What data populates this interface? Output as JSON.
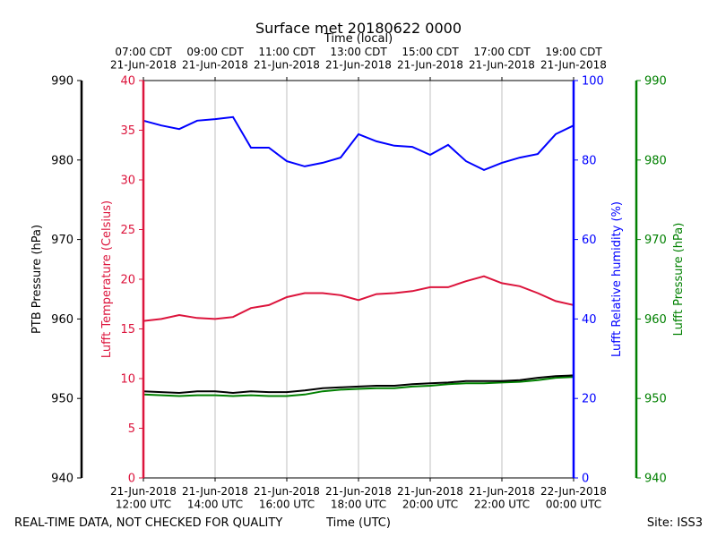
{
  "chart_data": {
    "type": "line",
    "title": "Surface met 20180622 0000",
    "x2label": "Time (local)",
    "xlabel": "Time (UTC)",
    "footer_left": "REAL-TIME DATA, NOT CHECKED FOR QUALITY",
    "footer_right": "Site: ISS3",
    "grid": "x",
    "x": [
      "2018-06-21T12:00",
      "2018-06-21T12:30",
      "2018-06-21T13:00",
      "2018-06-21T13:30",
      "2018-06-21T14:00",
      "2018-06-21T14:30",
      "2018-06-21T15:00",
      "2018-06-21T15:30",
      "2018-06-21T16:00",
      "2018-06-21T16:30",
      "2018-06-21T17:00",
      "2018-06-21T17:30",
      "2018-06-21T18:00",
      "2018-06-21T18:30",
      "2018-06-21T19:00",
      "2018-06-21T19:30",
      "2018-06-21T20:00",
      "2018-06-21T20:30",
      "2018-06-21T21:00",
      "2018-06-21T21:30",
      "2018-06-21T22:00",
      "2018-06-21T22:30",
      "2018-06-21T23:00",
      "2018-06-21T23:30",
      "2018-06-22T00:00"
    ],
    "xlim": [
      "2018-06-21T12:00",
      "2018-06-22T00:00"
    ],
    "xticks": [
      {
        "value": "2018-06-21T12:00",
        "label": "21-Jun-2018\n12:00 UTC"
      },
      {
        "value": "2018-06-21T14:00",
        "label": "21-Jun-2018\n14:00 UTC"
      },
      {
        "value": "2018-06-21T16:00",
        "label": "21-Jun-2018\n16:00 UTC"
      },
      {
        "value": "2018-06-21T18:00",
        "label": "21-Jun-2018\n18:00 UTC"
      },
      {
        "value": "2018-06-21T20:00",
        "label": "21-Jun-2018\n20:00 UTC"
      },
      {
        "value": "2018-06-21T22:00",
        "label": "21-Jun-2018\n22:00 UTC"
      },
      {
        "value": "2018-06-22T00:00",
        "label": "22-Jun-2018\n00:00 UTC"
      }
    ],
    "x2ticks": [
      {
        "value": "2018-06-21T12:00",
        "label": "07:00 CDT\n21-Jun-2018"
      },
      {
        "value": "2018-06-21T14:00",
        "label": "09:00 CDT\n21-Jun-2018"
      },
      {
        "value": "2018-06-21T16:00",
        "label": "11:00 CDT\n21-Jun-2018"
      },
      {
        "value": "2018-06-21T18:00",
        "label": "13:00 CDT\n21-Jun-2018"
      },
      {
        "value": "2018-06-21T20:00",
        "label": "15:00 CDT\n21-Jun-2018"
      },
      {
        "value": "2018-06-21T22:00",
        "label": "17:00 CDT\n21-Jun-2018"
      },
      {
        "value": "2018-06-22T00:00",
        "label": "19:00 CDT\n21-Jun-2018"
      }
    ],
    "ylabel": "PTB Pressure (hPa)",
    "ycolor": "#000000",
    "ylim": [
      940,
      990
    ],
    "yticks": [
      940,
      950,
      960,
      970,
      980,
      990
    ],
    "y2label": "Lufft Temperature (Celsius)",
    "y2color": "#dc143c",
    "y2lim": [
      0,
      40
    ],
    "y2ticks": [
      0,
      5,
      10,
      15,
      20,
      25,
      30,
      35,
      40
    ],
    "y3label": "Lufft Relative humidity (%)",
    "y3color": "#0000ff",
    "y3lim": [
      0,
      100
    ],
    "y3ticks": [
      0,
      20,
      40,
      60,
      80,
      100
    ],
    "y4label": "Lufft Pressure (hPa)",
    "y4color": "#008000",
    "y4lim": [
      940,
      990
    ],
    "y4ticks": [
      940,
      950,
      960,
      970,
      980,
      990
    ],
    "series": [
      {
        "axis": "y3",
        "color": "#0000ff",
        "values": [
          89.9,
          88.7,
          87.8,
          89.9,
          90.3,
          90.8,
          83.1,
          83.1,
          79.7,
          78.4,
          79.3,
          80.6,
          86.5,
          84.7,
          83.6,
          83.3,
          81.3,
          83.8,
          79.7,
          77.5,
          79.3,
          80.6,
          81.5,
          86.5,
          88.7
        ]
      },
      {
        "axis": "y2",
        "color": "#dc143c",
        "values": [
          15.8,
          16.0,
          16.4,
          16.1,
          16.0,
          16.2,
          17.1,
          17.4,
          18.2,
          18.6,
          18.6,
          18.4,
          17.9,
          18.5,
          18.6,
          18.8,
          19.2,
          19.2,
          19.8,
          20.3,
          19.6,
          19.3,
          18.6,
          17.8,
          17.4
        ]
      },
      {
        "axis": "y4",
        "color": "#008000",
        "values": [
          950.5,
          950.4,
          950.3,
          950.4,
          950.4,
          950.3,
          950.4,
          950.3,
          950.3,
          950.5,
          950.9,
          951.1,
          951.2,
          951.3,
          951.3,
          951.5,
          951.6,
          951.8,
          951.9,
          951.9,
          952.0,
          952.1,
          952.3,
          952.6,
          952.7
        ]
      },
      {
        "axis": "y",
        "color": "#000000",
        "values": [
          950.9,
          950.8,
          950.7,
          950.9,
          950.9,
          950.7,
          950.9,
          950.8,
          950.8,
          951.0,
          951.3,
          951.4,
          951.5,
          951.6,
          951.6,
          951.8,
          951.9,
          952.0,
          952.2,
          952.2,
          952.2,
          952.3,
          952.6,
          952.8,
          952.9
        ]
      }
    ]
  }
}
